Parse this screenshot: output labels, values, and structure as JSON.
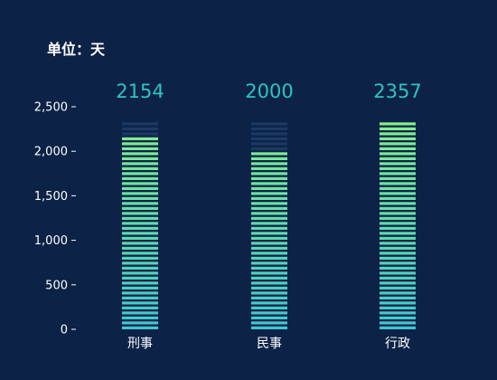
{
  "chart_data": {
    "type": "bar",
    "unit_text": "单位：天",
    "categories": [
      "刑事",
      "民事",
      "行政"
    ],
    "values": [
      2154,
      2000,
      2357
    ],
    "ylim": [
      0,
      2500
    ],
    "yticks": [
      0,
      500,
      1000,
      1500,
      2000,
      2500
    ],
    "ytick_labels": [
      "0",
      "500",
      "1,000",
      "1,500",
      "2,000",
      "2,500"
    ],
    "grid": false,
    "legend": "none",
    "colors": {
      "background": "#0c2247",
      "bar_top": "#86f08c",
      "bar_bottom": "#3ec7d0",
      "bar_background": "#1b3a63",
      "data_label": "#2ec4be",
      "text": "#ffffff"
    }
  }
}
